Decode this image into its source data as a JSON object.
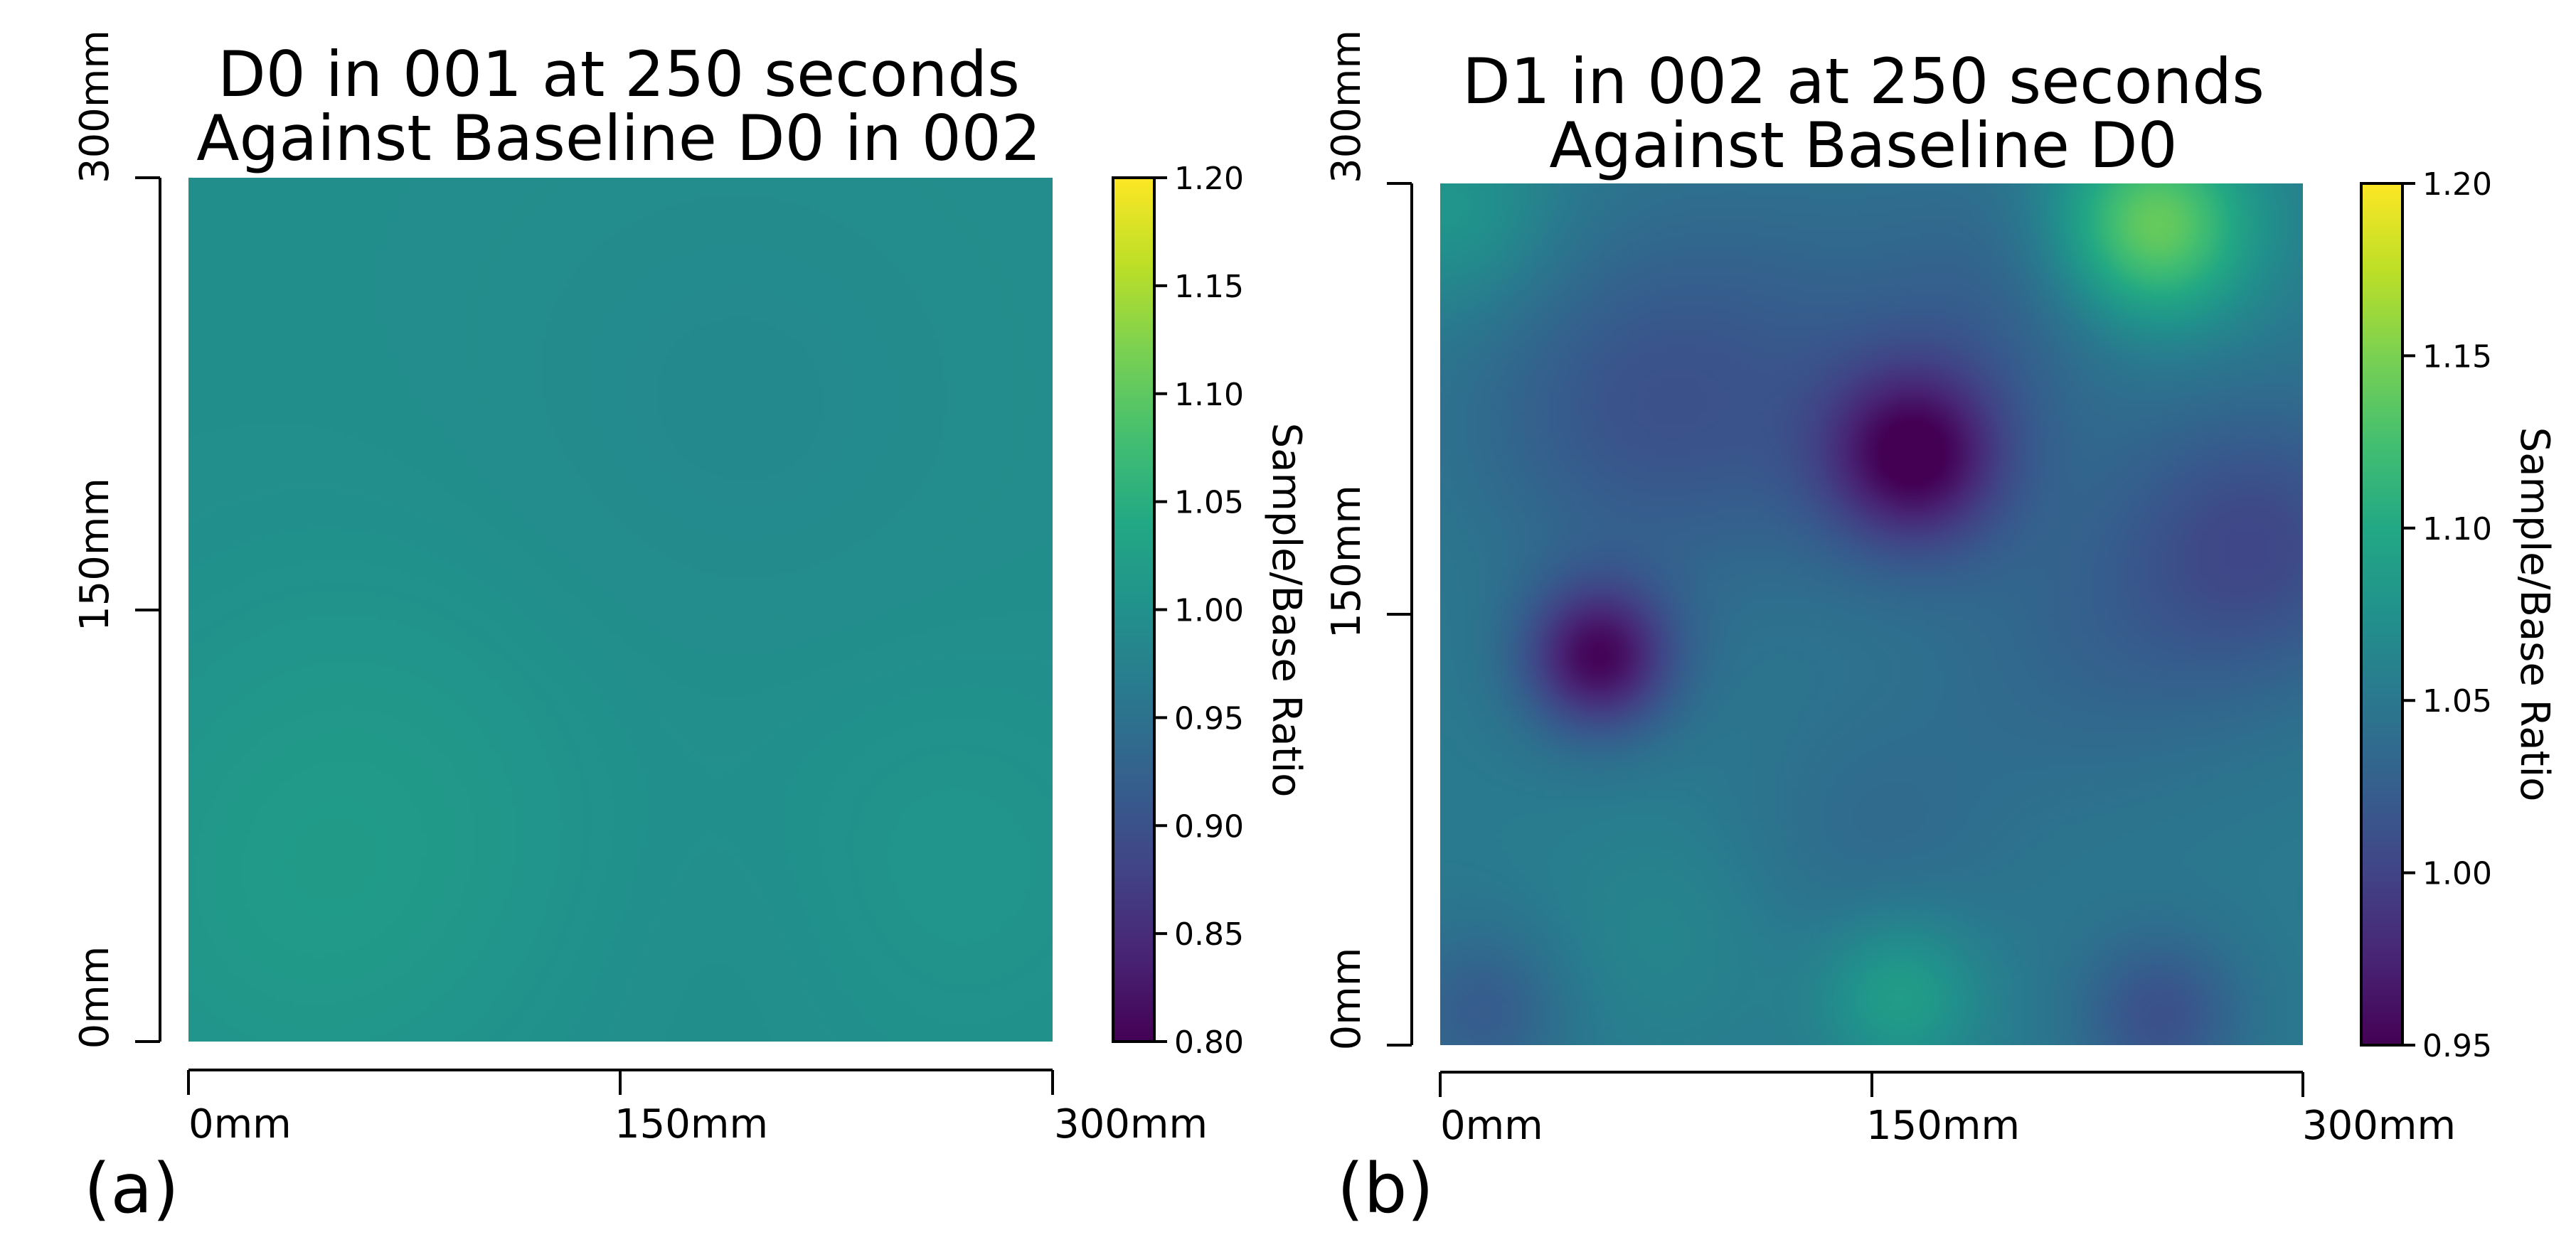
{
  "figure": {
    "background": "#ffffff"
  },
  "chart_data": [
    {
      "type": "heatmap",
      "panel_label": "(a)",
      "title": [
        "D0 in 001 at 250 seconds",
        "Against Baseline D0 in 002"
      ],
      "x_ticks": [
        "0mm",
        "150mm",
        "300mm"
      ],
      "y_ticks": [
        "0mm",
        "150mm",
        "300mm"
      ],
      "x_range_mm": [
        0,
        300
      ],
      "y_range_mm": [
        0,
        300
      ],
      "colorbar": {
        "label": "Sample/Base Ratio",
        "range": [
          0.8,
          1.2
        ],
        "ticks": [
          "0.80",
          "0.85",
          "0.90",
          "0.95",
          "1.00",
          "1.05",
          "1.10",
          "1.15",
          "1.20"
        ],
        "colormap": "viridis"
      },
      "base_value": 0.995,
      "features": [
        {
          "x_mm": 60,
          "y_mm": 80,
          "sigma_mm": 60,
          "delta": 0.018
        },
        {
          "x_mm": 260,
          "y_mm": 60,
          "sigma_mm": 50,
          "delta": 0.012
        },
        {
          "x_mm": 190,
          "y_mm": 220,
          "sigma_mm": 60,
          "delta": -0.008
        },
        {
          "x_mm": 30,
          "y_mm": 30,
          "sigma_mm": 50,
          "delta": 0.008
        },
        {
          "x_mm": 200,
          "y_mm": 40,
          "sigma_mm": 40,
          "delta": -0.004
        }
      ]
    },
    {
      "type": "heatmap",
      "panel_label": "(b)",
      "title": [
        "D1 in 002 at 250 seconds",
        "Against Baseline D0"
      ],
      "x_ticks": [
        "0mm",
        "150mm",
        "300mm"
      ],
      "y_ticks": [
        "0mm",
        "150mm",
        "300mm"
      ],
      "x_range_mm": [
        0,
        300
      ],
      "y_range_mm": [
        0,
        300
      ],
      "colorbar": {
        "label": "Sample/Base Ratio",
        "range": [
          0.95,
          1.2
        ],
        "ticks": [
          "0.95",
          "1.00",
          "1.05",
          "1.10",
          "1.15",
          "1.20"
        ],
        "colormap": "viridis"
      },
      "base_value": 1.052,
      "features": [
        {
          "x_mm": 248,
          "y_mm": 285,
          "sigma_mm": 24,
          "delta": 0.095
        },
        {
          "x_mm": 165,
          "y_mm": 205,
          "sigma_mm": 22,
          "delta": -0.095
        },
        {
          "x_mm": 55,
          "y_mm": 135,
          "sigma_mm": 18,
          "delta": -0.095
        },
        {
          "x_mm": 160,
          "y_mm": 18,
          "sigma_mm": 20,
          "delta": 0.04
        },
        {
          "x_mm": 5,
          "y_mm": 290,
          "sigma_mm": 25,
          "delta": 0.03
        },
        {
          "x_mm": 250,
          "y_mm": 10,
          "sigma_mm": 20,
          "delta": -0.04
        },
        {
          "x_mm": 15,
          "y_mm": 12,
          "sigma_mm": 20,
          "delta": -0.03
        },
        {
          "x_mm": 285,
          "y_mm": 175,
          "sigma_mm": 35,
          "delta": -0.045
        },
        {
          "x_mm": 110,
          "y_mm": 230,
          "sigma_mm": 50,
          "delta": -0.025
        },
        {
          "x_mm": 60,
          "y_mm": 220,
          "sigma_mm": 40,
          "delta": -0.022
        },
        {
          "x_mm": 200,
          "y_mm": 260,
          "sigma_mm": 35,
          "delta": -0.02
        },
        {
          "x_mm": 150,
          "y_mm": 70,
          "sigma_mm": 35,
          "delta": -0.015
        },
        {
          "x_mm": 225,
          "y_mm": 140,
          "sigma_mm": 40,
          "delta": -0.018
        },
        {
          "x_mm": 80,
          "y_mm": 40,
          "sigma_mm": 30,
          "delta": 0.012
        }
      ]
    }
  ]
}
